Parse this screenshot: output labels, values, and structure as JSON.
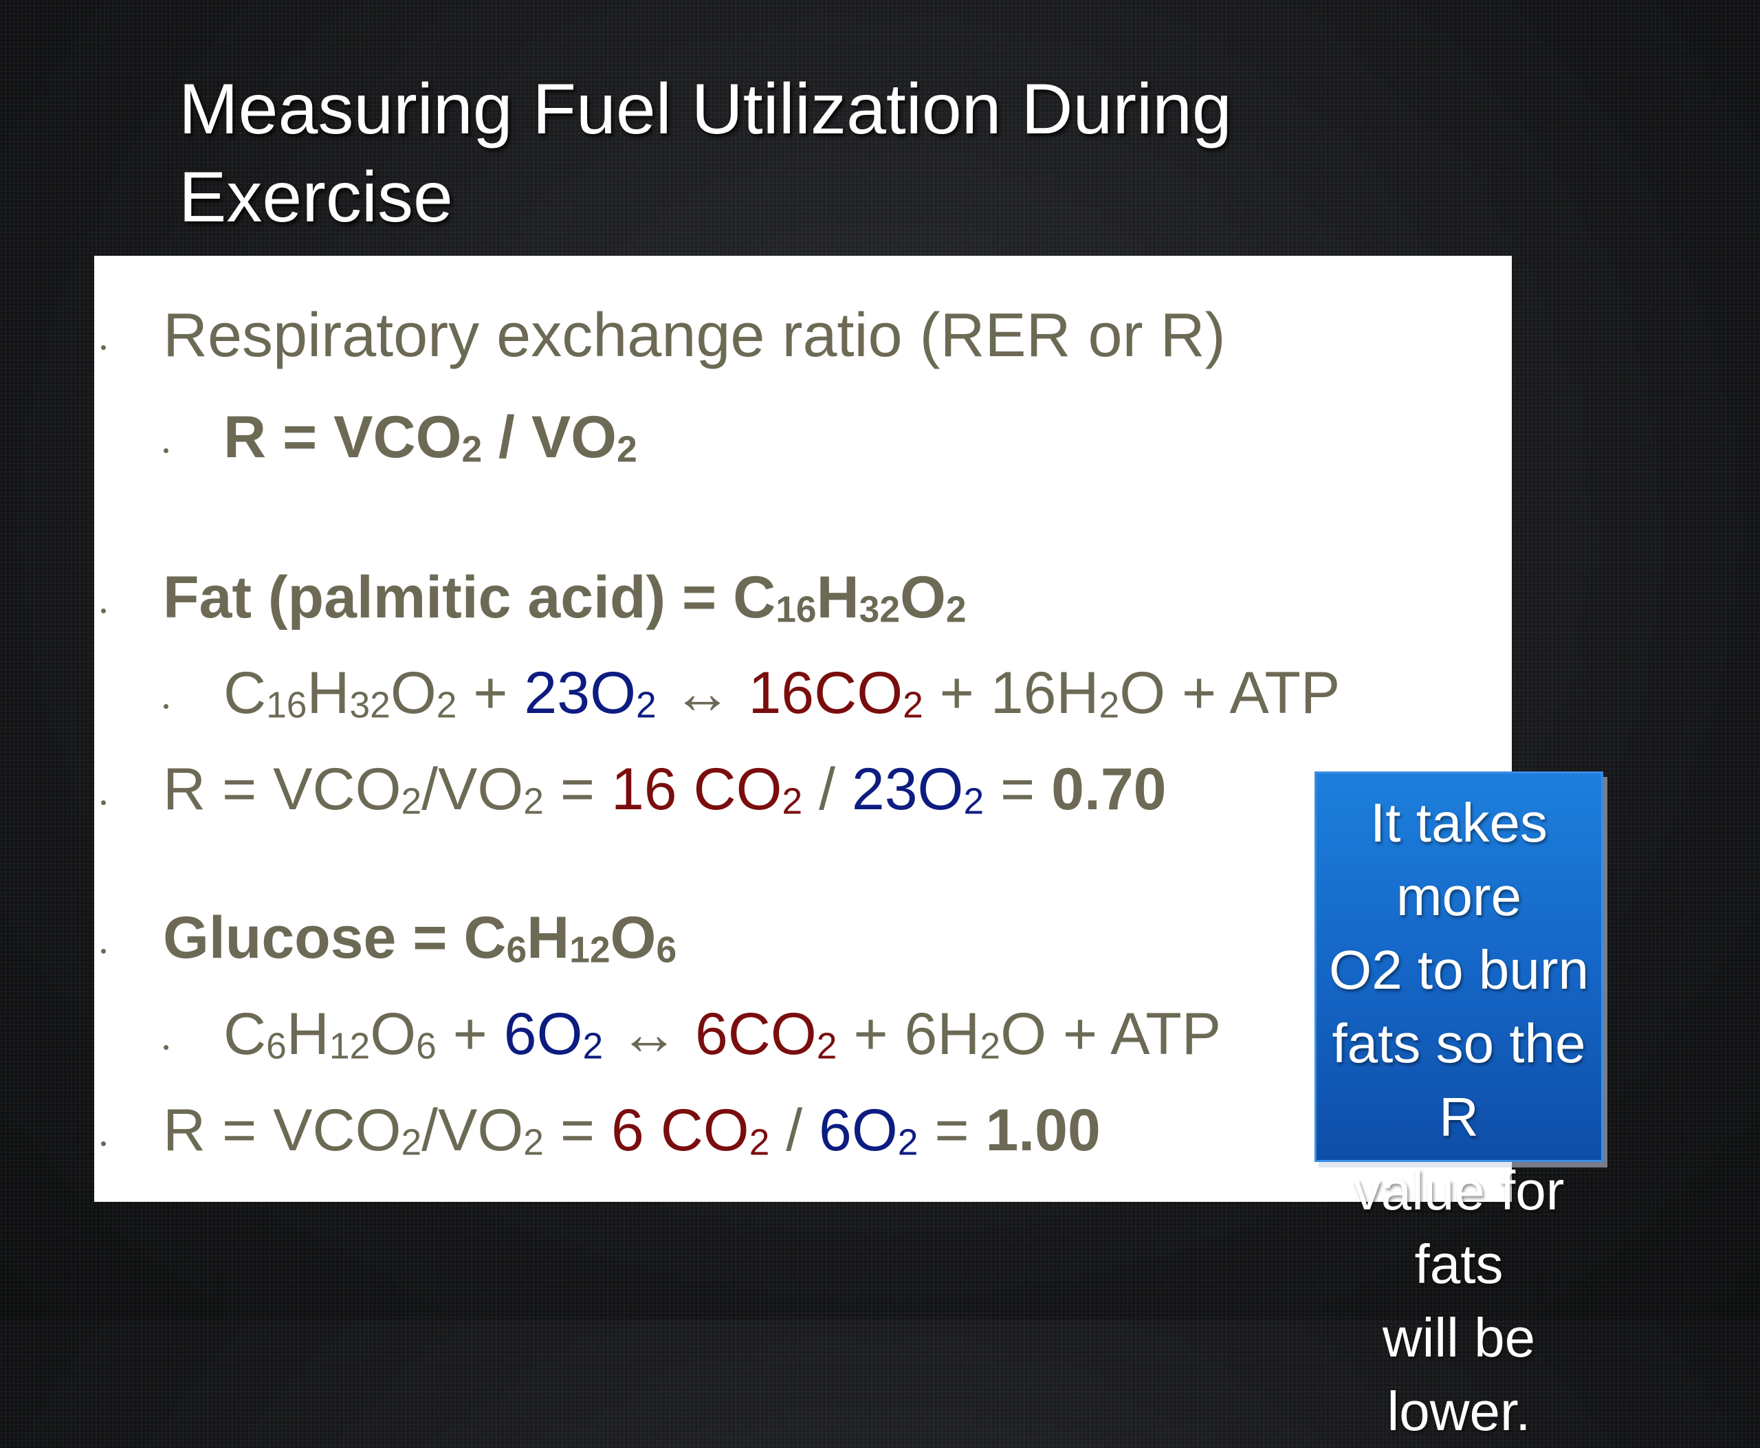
{
  "title": {
    "line1": "Measuring Fuel Utilization During",
    "line2": "Exercise"
  },
  "content": {
    "rer_heading": "Respiratory exchange ratio (RER or R)",
    "rer_formula": {
      "lhs": "R = VCO",
      "sub1": "2",
      "mid": " / VO",
      "sub2": "2"
    },
    "fat_heading": {
      "text": "Fat (palmitic acid) = C",
      "s1": "16",
      "h": "H",
      "s2": "32",
      "o": "O",
      "s3": "2"
    },
    "fat_equation": {
      "c": "C",
      "s1": "16",
      "h": "H",
      "s2": "32",
      "o": "O",
      "s3": "2",
      "plus1": " + ",
      "o2_coef": "23O",
      "o2_sub": "2",
      "arrow": " ↔ ",
      "co2_coef": "16CO",
      "co2_sub": "2",
      "h2o": " + 16H",
      "h2o_sub": "2",
      "h2o_o": "O + ATP"
    },
    "fat_r": {
      "prefix": "R = VCO",
      "s1": "2",
      "slash": "/VO",
      "s2": "2",
      "eq": " = ",
      "co2": "16 CO",
      "co2_sub": "2",
      "div": " / ",
      "o2": "23O",
      "o2_sub": "2",
      "eq2": " = ",
      "value": "0.70"
    },
    "glucose_heading": {
      "text": "Glucose = C",
      "s1": "6",
      "h": "H",
      "s2": "12",
      "o": "O",
      "s3": "6"
    },
    "glucose_equation": {
      "c": "C",
      "s1": "6",
      "h": "H",
      "s2": "12",
      "o": "O",
      "s3": "6",
      "plus1": " + ",
      "o2_coef": "6O",
      "o2_sub": "2",
      "arrow": " ↔ ",
      "co2_coef": "6CO",
      "co2_sub": "2",
      "h2o": " + 6H",
      "h2o_sub": "2",
      "h2o_o": "O + ATP"
    },
    "glucose_r": {
      "prefix": "R = VCO",
      "s1": "2",
      "slash": "/VO",
      "s2": "2",
      "eq": " = ",
      "co2": "6 CO",
      "co2_sub": "2",
      "div": " / ",
      "o2": "6O",
      "o2_sub": "2",
      "eq2": " = ",
      "value": "1.00"
    }
  },
  "callout": {
    "line1": "It takes more",
    "line2": "O2 to burn",
    "line3": "fats so the R",
    "line4": "value for fats",
    "line5": "will be lower."
  },
  "colors": {
    "body_text": "#6c6a55",
    "oxygen_blue": "#0d1c80",
    "co2_red": "#7a0d0d",
    "callout_blue": "#1464c4"
  }
}
